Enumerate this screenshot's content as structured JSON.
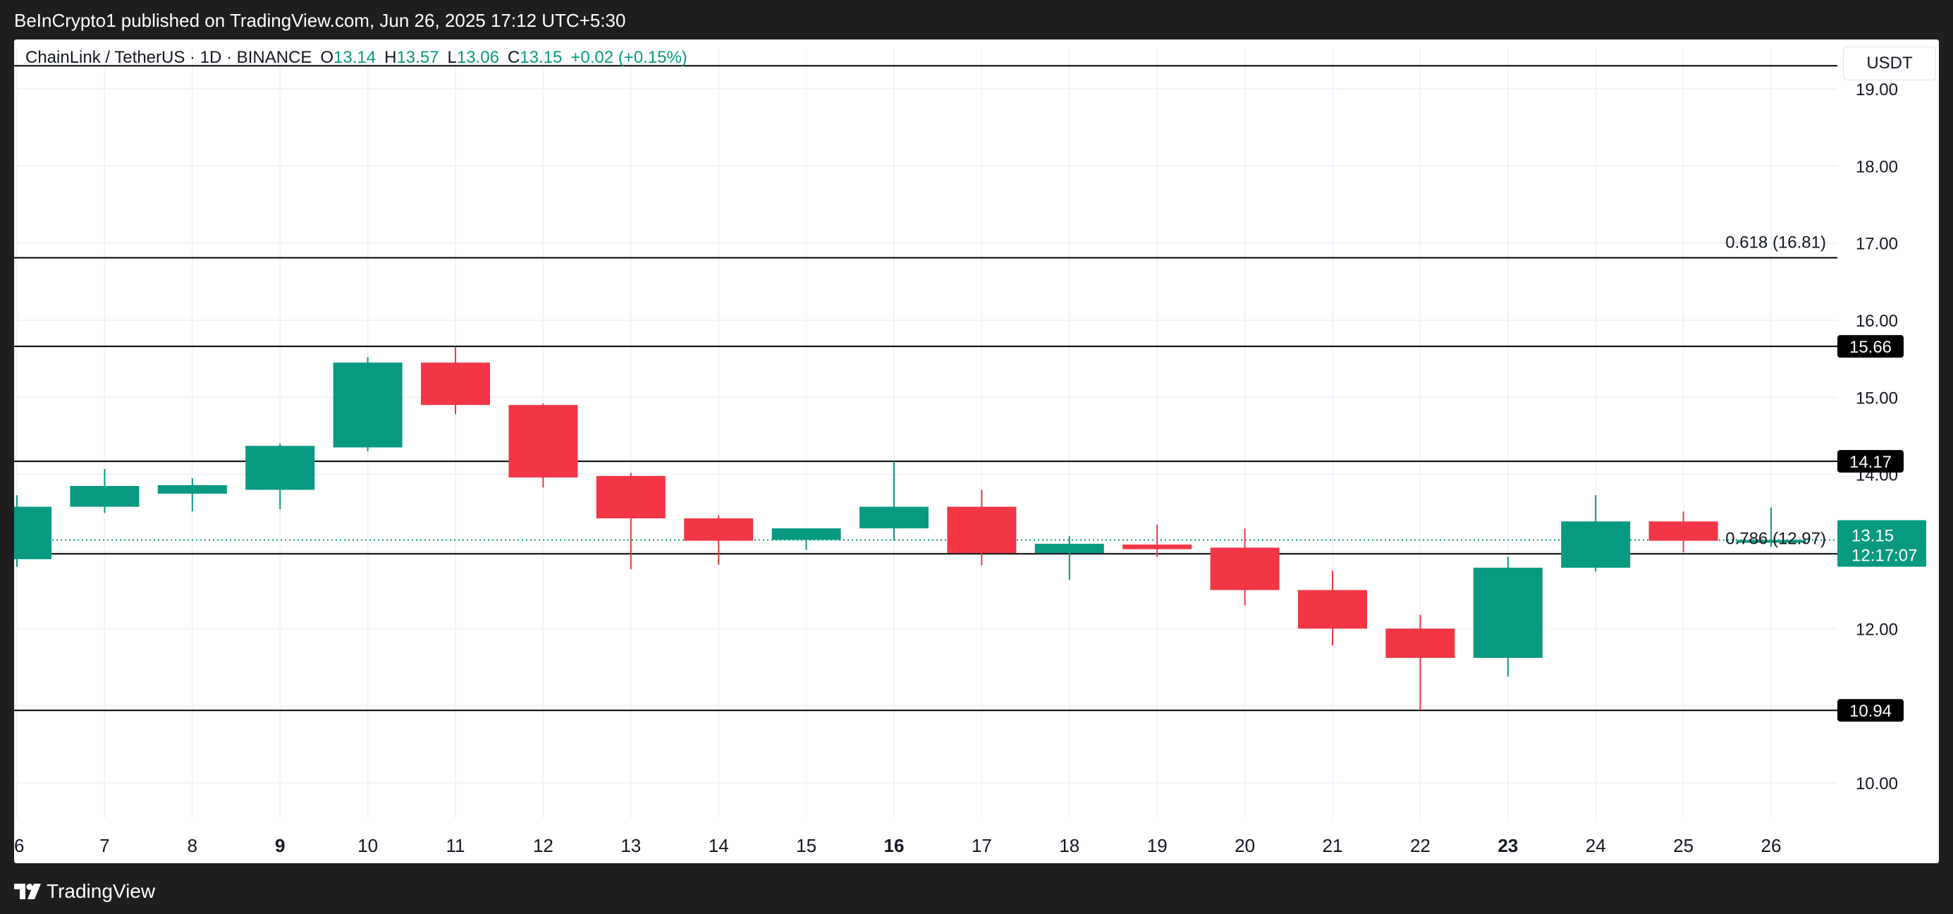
{
  "header": {
    "publisher_text": "BeInCrypto1 published on TradingView.com, Jun 26, 2025 17:12 UTC+5:30"
  },
  "legend": {
    "symbol": "ChainLink / TetherUS · 1D · BINANCE",
    "o_label": "O",
    "o_value": "13.14",
    "h_label": "H",
    "h_value": "13.57",
    "l_label": "L",
    "l_value": "13.06",
    "c_label": "C",
    "c_value": "13.15",
    "change": "+0.02 (+0.15%)"
  },
  "currency": "USDT",
  "footer": {
    "brand": "TradingView"
  },
  "colors": {
    "up": "#089981",
    "down": "#f23645",
    "line": "#000000",
    "grid": "#f0f3fa",
    "text": "#131722"
  },
  "chart_data": {
    "type": "candlestick",
    "title": "ChainLink / TetherUS · 1D · BINANCE",
    "x_tick_labels": [
      "6",
      "7",
      "8",
      "9",
      "10",
      "11",
      "12",
      "13",
      "14",
      "15",
      "16",
      "17",
      "18",
      "19",
      "20",
      "21",
      "22",
      "23",
      "24",
      "25",
      "26"
    ],
    "x_tick_bold": [
      "9",
      "16",
      "23"
    ],
    "y_tick_labels": [
      "10.00",
      "12.00",
      "14.00",
      "15.00",
      "16.00",
      "17.00",
      "18.00",
      "19.00"
    ],
    "ylim": [
      9.2,
      19.6
    ],
    "grid": true,
    "candles": [
      {
        "day": "6",
        "open": 12.9,
        "high": 13.73,
        "low": 12.8,
        "close": 13.58
      },
      {
        "day": "7",
        "open": 13.58,
        "high": 14.07,
        "low": 13.5,
        "close": 13.85
      },
      {
        "day": "8",
        "open": 13.75,
        "high": 13.95,
        "low": 13.52,
        "close": 13.86
      },
      {
        "day": "9",
        "open": 13.8,
        "high": 14.4,
        "low": 13.55,
        "close": 14.37
      },
      {
        "day": "10",
        "open": 14.35,
        "high": 15.52,
        "low": 14.3,
        "close": 15.45
      },
      {
        "day": "11",
        "open": 15.45,
        "high": 15.66,
        "low": 14.78,
        "close": 14.9
      },
      {
        "day": "12",
        "open": 14.9,
        "high": 14.92,
        "low": 13.83,
        "close": 13.96
      },
      {
        "day": "13",
        "open": 13.98,
        "high": 14.02,
        "low": 12.77,
        "close": 13.43
      },
      {
        "day": "14",
        "open": 13.43,
        "high": 13.47,
        "low": 12.83,
        "close": 13.14
      },
      {
        "day": "15",
        "open": 13.15,
        "high": 13.27,
        "low": 13.02,
        "close": 13.3
      },
      {
        "day": "16",
        "open": 13.3,
        "high": 14.17,
        "low": 13.14,
        "close": 13.58
      },
      {
        "day": "17",
        "open": 13.58,
        "high": 13.8,
        "low": 12.82,
        "close": 12.98
      },
      {
        "day": "18",
        "open": 12.98,
        "high": 13.2,
        "low": 12.63,
        "close": 13.1
      },
      {
        "day": "19",
        "open": 13.09,
        "high": 13.35,
        "low": 12.93,
        "close": 13.03
      },
      {
        "day": "20",
        "open": 13.05,
        "high": 13.3,
        "low": 12.3,
        "close": 12.5
      },
      {
        "day": "21",
        "open": 12.5,
        "high": 12.75,
        "low": 11.78,
        "close": 12.0
      },
      {
        "day": "22",
        "open": 12.0,
        "high": 12.18,
        "low": 10.94,
        "close": 11.62
      },
      {
        "day": "23",
        "open": 11.62,
        "high": 12.93,
        "low": 11.38,
        "close": 12.79
      },
      {
        "day": "24",
        "open": 12.79,
        "high": 13.73,
        "low": 12.74,
        "close": 13.39
      },
      {
        "day": "25",
        "open": 13.39,
        "high": 13.52,
        "low": 12.99,
        "close": 13.14
      },
      {
        "day": "26",
        "open": 13.14,
        "high": 13.57,
        "low": 13.06,
        "close": 13.15
      }
    ],
    "horizontal_levels": [
      {
        "value": 15.66,
        "label": "15.66"
      },
      {
        "value": 14.17,
        "label": "14.17"
      },
      {
        "value": 10.94,
        "label": "10.94"
      }
    ],
    "fib_levels": [
      {
        "value": 19.3,
        "label": ""
      },
      {
        "value": 16.81,
        "label": "0.618 (16.81)"
      },
      {
        "value": 12.97,
        "label": "0.786 (12.97)"
      }
    ],
    "last_price": {
      "value": 13.15,
      "label": "13.15",
      "countdown": "12:17:07"
    }
  }
}
